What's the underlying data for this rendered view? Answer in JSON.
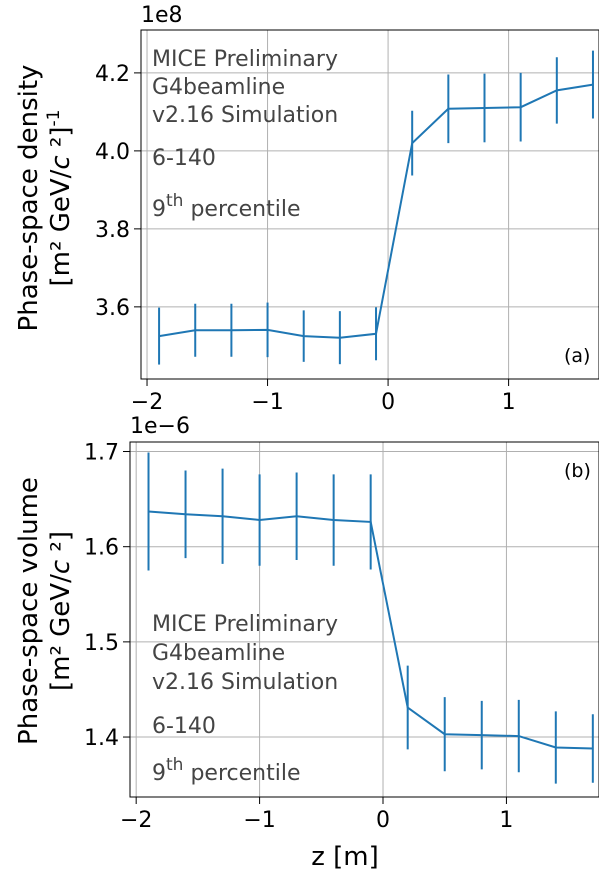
{
  "chart_data": [
    {
      "type": "line",
      "panel_tag": "(a)",
      "offset_text": "1e8",
      "ylabel_line1": "Phase-space density",
      "ylabel_line2_prefix": "[m² GeV/",
      "ylabel_line2_c": "c",
      "ylabel_line2_suffix": " ²]",
      "ylabel_line2_sup": "-1",
      "annotation_lines": [
        "MICE Preliminary",
        "G4beamline",
        "v2.16 Simulation",
        "6-140"
      ],
      "percentile_number": "9",
      "percentile_sup": "th",
      "percentile_word": "percentile",
      "xlim": [
        -2.05,
        1.75
      ],
      "ylim": [
        3.415,
        4.31
      ],
      "xticks": [
        -2,
        -1,
        0,
        1
      ],
      "xtick_labels": [
        "−2",
        "−1",
        "0",
        "1"
      ],
      "yticks": [
        3.6,
        3.8,
        4.0,
        4.2
      ],
      "ytick_labels": [
        "3.6",
        "3.8",
        "4.0",
        "4.2"
      ],
      "grid": true,
      "color": "#1f77b4",
      "x": [
        -1.9,
        -1.6,
        -1.3,
        -1.0,
        -0.7,
        -0.4,
        -0.1,
        0.2,
        0.5,
        0.8,
        1.1,
        1.4,
        1.7
      ],
      "y": [
        3.525,
        3.54,
        3.54,
        3.541,
        3.525,
        3.521,
        3.531,
        4.02,
        4.108,
        4.11,
        4.112,
        4.155,
        4.17
      ],
      "yerr": [
        0.073,
        0.068,
        0.068,
        0.07,
        0.066,
        0.068,
        0.068,
        0.083,
        0.088,
        0.088,
        0.088,
        0.085,
        0.087
      ]
    },
    {
      "type": "line",
      "panel_tag": "(b)",
      "offset_text": "1e−6",
      "ylabel_line1": "Phase-space volume",
      "ylabel_line2_prefix": "[m² GeV/",
      "ylabel_line2_c": "c",
      "ylabel_line2_suffix": " ²]",
      "ylabel_line2_sup": "",
      "xlabel": "z [m]",
      "annotation_lines": [
        "MICE Preliminary",
        "G4beamline",
        "v2.16 Simulation",
        "6-140"
      ],
      "percentile_number": "9",
      "percentile_sup": "th",
      "percentile_word": "percentile",
      "xlim": [
        -2.05,
        1.75
      ],
      "ylim": [
        1.337,
        1.71
      ],
      "xticks": [
        -2,
        -1,
        0,
        1
      ],
      "xtick_labels": [
        "−2",
        "−1",
        "0",
        "1"
      ],
      "yticks": [
        1.4,
        1.5,
        1.6,
        1.7
      ],
      "ytick_labels": [
        "1.4",
        "1.5",
        "1.6",
        "1.7"
      ],
      "grid": true,
      "color": "#1f77b4",
      "x": [
        -1.9,
        -1.6,
        -1.3,
        -1.0,
        -0.7,
        -0.4,
        -0.1,
        0.2,
        0.5,
        0.8,
        1.1,
        1.4,
        1.7
      ],
      "y": [
        1.637,
        1.634,
        1.632,
        1.628,
        1.632,
        1.628,
        1.626,
        1.431,
        1.403,
        1.402,
        1.401,
        1.389,
        1.388
      ],
      "yerr": [
        0.062,
        0.046,
        0.05,
        0.048,
        0.046,
        0.048,
        0.05,
        0.044,
        0.039,
        0.036,
        0.038,
        0.038,
        0.036
      ]
    }
  ]
}
